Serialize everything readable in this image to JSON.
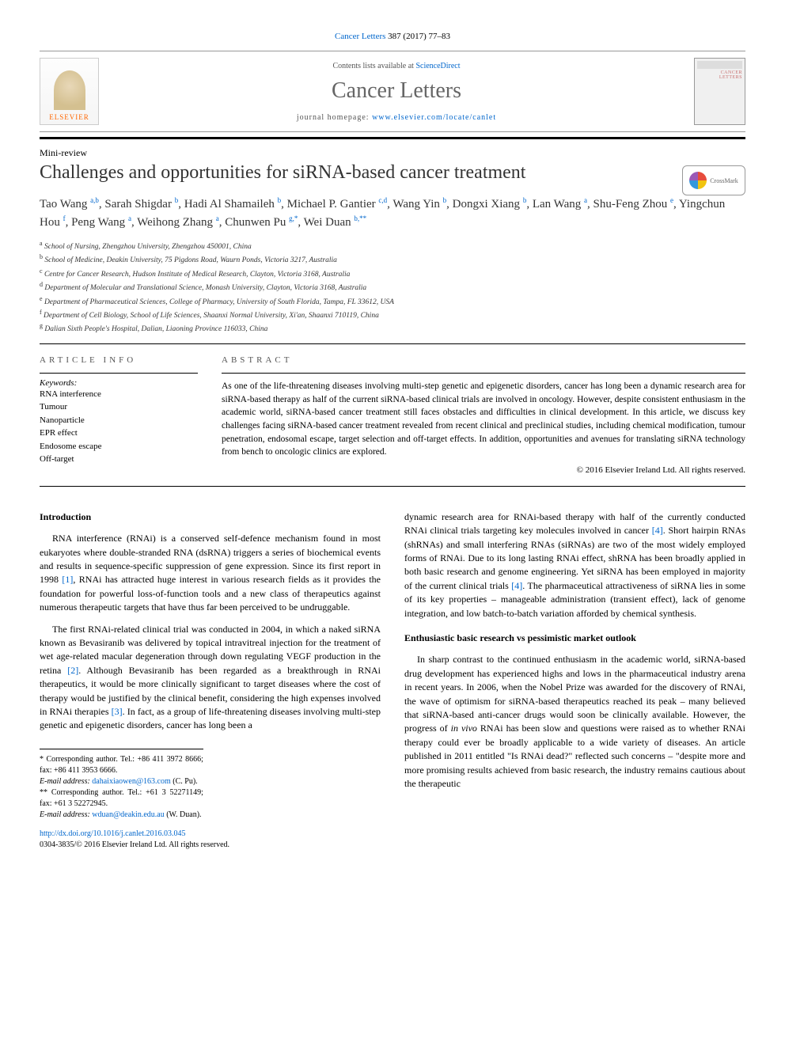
{
  "citation": {
    "journal_link": "Cancer Letters",
    "vol_pages": " 387 (2017) 77–83"
  },
  "header": {
    "contents_prefix": "Contents lists available at ",
    "contents_link": "ScienceDirect",
    "journal_name": "Cancer Letters",
    "homepage_prefix": "journal homepage: ",
    "homepage_url": "www.elsevier.com/locate/canlet",
    "elsevier_label": "ELSEVIER",
    "cover_title": "CANCER LETTERS"
  },
  "article": {
    "type": "Mini-review",
    "title": "Challenges and opportunities for siRNA-based cancer treatment",
    "crossmark_label": "CrossMark"
  },
  "authors_html": "Tao Wang <sup>a,b</sup>, Sarah Shigdar <sup>b</sup>, Hadi Al Shamaileh <sup>b</sup>, Michael P. Gantier <sup>c,d</sup>, Wang Yin <sup>b</sup>, Dongxi Xiang <sup>b</sup>, Lan Wang <sup>a</sup>, Shu-Feng Zhou <sup>e</sup>, Yingchun Hou <sup>f</sup>, Peng Wang <sup>a</sup>, Weihong Zhang <sup>a</sup>, Chunwen Pu <sup>g,*</sup>, Wei Duan <sup>b,**</sup>",
  "affiliations": [
    {
      "sup": "a",
      "text": "School of Nursing, Zhengzhou University, Zhengzhou 450001, China"
    },
    {
      "sup": "b",
      "text": "School of Medicine, Deakin University, 75 Pigdons Road, Waurn Ponds, Victoria 3217, Australia"
    },
    {
      "sup": "c",
      "text": "Centre for Cancer Research, Hudson Institute of Medical Research, Clayton, Victoria 3168, Australia"
    },
    {
      "sup": "d",
      "text": "Department of Molecular and Translational Science, Monash University, Clayton, Victoria 3168, Australia"
    },
    {
      "sup": "e",
      "text": "Department of Pharmaceutical Sciences, College of Pharmacy, University of South Florida, Tampa, FL 33612, USA"
    },
    {
      "sup": "f",
      "text": "Department of Cell Biology, School of Life Sciences, Shaanxi Normal University, Xi'an, Shaanxi 710119, China"
    },
    {
      "sup": "g",
      "text": "Dalian Sixth People's Hospital, Dalian, Liaoning Province 116033, China"
    }
  ],
  "info": {
    "heading": "ARTICLE INFO",
    "keywords_label": "Keywords:",
    "keywords": [
      "RNA interference",
      "Tumour",
      "Nanoparticle",
      "EPR effect",
      "Endosome escape",
      "Off-target"
    ]
  },
  "abstract": {
    "heading": "ABSTRACT",
    "text": "As one of the life-threatening diseases involving multi-step genetic and epigenetic disorders, cancer has long been a dynamic research area for siRNA-based therapy as half of the current siRNA-based clinical trials are involved in oncology. However, despite consistent enthusiasm in the academic world, siRNA-based cancer treatment still faces obstacles and difficulties in clinical development. In this article, we discuss key challenges facing siRNA-based cancer treatment revealed from recent clinical and preclinical studies, including chemical modification, tumour penetration, endosomal escape, target selection and off-target effects. In addition, opportunities and avenues for translating siRNA technology from bench to oncologic clinics are explored.",
    "copyright": "© 2016 Elsevier Ireland Ltd. All rights reserved."
  },
  "body": {
    "left": {
      "heading": "Introduction",
      "p1": "RNA interference (RNAi) is a conserved self-defence mechanism found in most eukaryotes where double-stranded RNA (dsRNA) triggers a series of biochemical events and results in sequence-specific suppression of gene expression. Since its first report in 1998 [1], RNAi has attracted huge interest in various research fields as it provides the foundation for powerful loss-of-function tools and a new class of therapeutics against numerous therapeutic targets that have thus far been perceived to be undruggable.",
      "p2": "The first RNAi-related clinical trial was conducted in 2004, in which a naked siRNA known as Bevasiranib was delivered by topical intravitreal injection for the treatment of wet age-related macular degeneration through down regulating VEGF production in the retina [2]. Although Bevasiranib has been regarded as a breakthrough in RNAi therapeutics, it would be more clinically significant to target diseases where the cost of therapy would be justified by the clinical benefit, considering the high expenses involved in RNAi therapies [3]. In fact, as a group of life-threatening diseases involving multi-step genetic and epigenetic disorders, cancer has long been a"
    },
    "right": {
      "p1": "dynamic research area for RNAi-based therapy with half of the currently conducted RNAi clinical trials targeting key molecules involved in cancer [4]. Short hairpin RNAs (shRNAs) and small interfering RNAs (siRNAs) are two of the most widely employed forms of RNAi. Due to its long lasting RNAi effect, shRNA has been broadly applied in both basic research and genome engineering. Yet siRNA has been employed in majority of the current clinical trials [4]. The pharmaceutical attractiveness of siRNA lies in some of its key properties – manageable administration (transient effect), lack of genome integration, and low batch-to-batch variation afforded by chemical synthesis.",
      "heading2": "Enthusiastic basic research vs pessimistic market outlook",
      "p2": "In sharp contrast to the continued enthusiasm in the academic world, siRNA-based drug development has experienced highs and lows in the pharmaceutical industry arena in recent years. In 2006, when the Nobel Prize was awarded for the discovery of RNAi, the wave of optimism for siRNA-based therapeutics reached its peak – many believed that siRNA-based anti-cancer drugs would soon be clinically available. However, the progress of in vivo RNAi has been slow and questions were raised as to whether RNAi therapy could ever be broadly applicable to a wide variety of diseases. An article published in 2011 entitled \"Is RNAi dead?\" reflected such concerns – \"despite more and more promising results achieved from basic research, the industry remains cautious about the therapeutic"
    }
  },
  "footnotes": {
    "corr1": "* Corresponding author. Tel.: +86 411 3972 8666; fax: +86 411 3953 6666.",
    "email1_label": "E-mail address: ",
    "email1": "dahaixiaowen@163.com",
    "email1_suffix": " (C. Pu).",
    "corr2": "** Corresponding author. Tel.: +61 3 52271149; fax: +61 3 52272945.",
    "email2_label": "E-mail address: ",
    "email2": "wduan@deakin.edu.au",
    "email2_suffix": " (W. Duan)."
  },
  "doi": {
    "url": "http://dx.doi.org/10.1016/j.canlet.2016.03.045",
    "issn_line": "0304-3835/© 2016 Elsevier Ireland Ltd. All rights reserved."
  },
  "colors": {
    "link": "#0066cc",
    "text": "#000000",
    "gray": "#666666",
    "orange": "#ff6600"
  }
}
